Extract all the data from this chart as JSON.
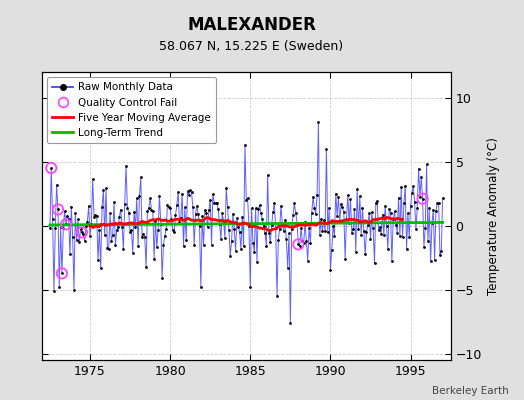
{
  "title": "MALEXANDER",
  "subtitle": "58.067 N, 15.225 E (Sweden)",
  "ylabel": "Temperature Anomaly (°C)",
  "attribution": "Berkeley Earth",
  "xlim": [
    1972.0,
    1997.5
  ],
  "ylim": [
    -10.5,
    12
  ],
  "yticks": [
    -10,
    -5,
    0,
    5,
    10
  ],
  "xticks": [
    1975,
    1980,
    1985,
    1990,
    1995
  ],
  "bg_color": "#e0e0e0",
  "plot_bg_color": "#ffffff",
  "raw_line_color": "#4444ff",
  "raw_marker_color": "#000000",
  "qc_color": "#ff44ff",
  "moving_avg_color": "#ff0000",
  "trend_color": "#00bb00",
  "raw_linewidth": 0.7,
  "moving_avg_linewidth": 2.0,
  "trend_linewidth": 2.0,
  "seed": 99,
  "start_year": 1972.5,
  "n_months": 295,
  "long_term_trend_slope": 0.008,
  "long_term_trend_intercept": 0.05,
  "grid_color": "#cccccc",
  "grid_style": "--"
}
